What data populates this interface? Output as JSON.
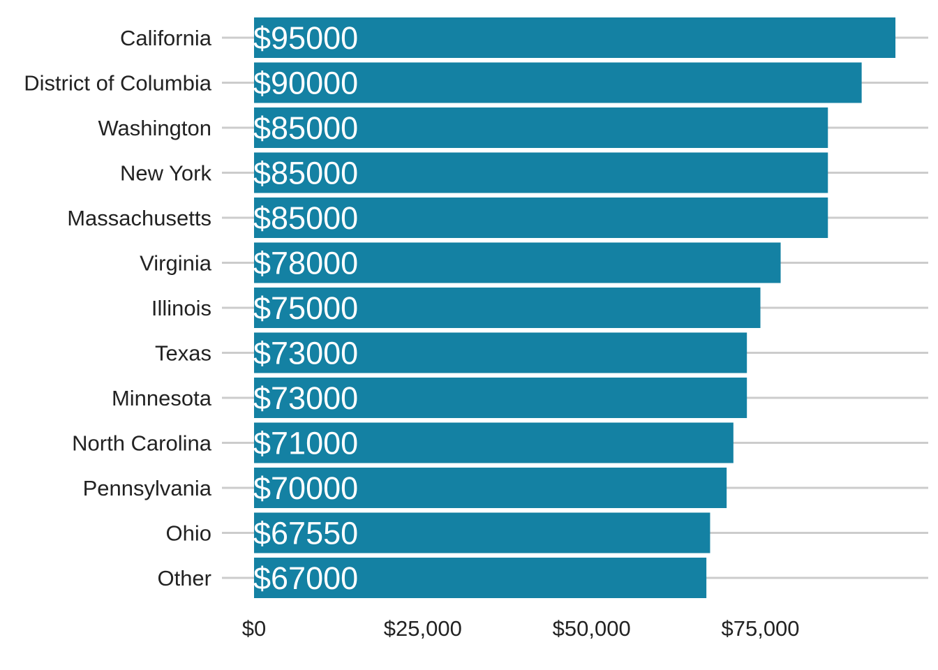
{
  "chart_data": {
    "type": "bar",
    "orientation": "horizontal",
    "categories": [
      "California",
      "District of Columbia",
      "Washington",
      "New York",
      "Massachusetts",
      "Virginia",
      "Illinois",
      "Texas",
      "Minnesota",
      "North Carolina",
      "Pennsylvania",
      "Ohio",
      "Other"
    ],
    "values": [
      95000,
      90000,
      85000,
      85000,
      85000,
      78000,
      75000,
      73000,
      73000,
      71000,
      70000,
      67550,
      67000
    ],
    "value_labels": [
      "$95000",
      "$90000",
      "$85000",
      "$85000",
      "$85000",
      "$78000",
      "$75000",
      "$73000",
      "$73000",
      "$71000",
      "$70000",
      "$67550",
      "$67000"
    ],
    "x_ticks": [
      0,
      25000,
      50000,
      75000
    ],
    "x_tick_labels": [
      "$0",
      "$25,000",
      "$50,000",
      "$75,000"
    ],
    "xlim": [
      0,
      100000
    ],
    "title": "",
    "xlabel": "",
    "ylabel": "",
    "grid": "horizontal",
    "legend": "none",
    "colors": {
      "bar": "#1481a3",
      "grid": "#cccccc",
      "text": "#222222",
      "bar_label": "#ffffff"
    }
  }
}
